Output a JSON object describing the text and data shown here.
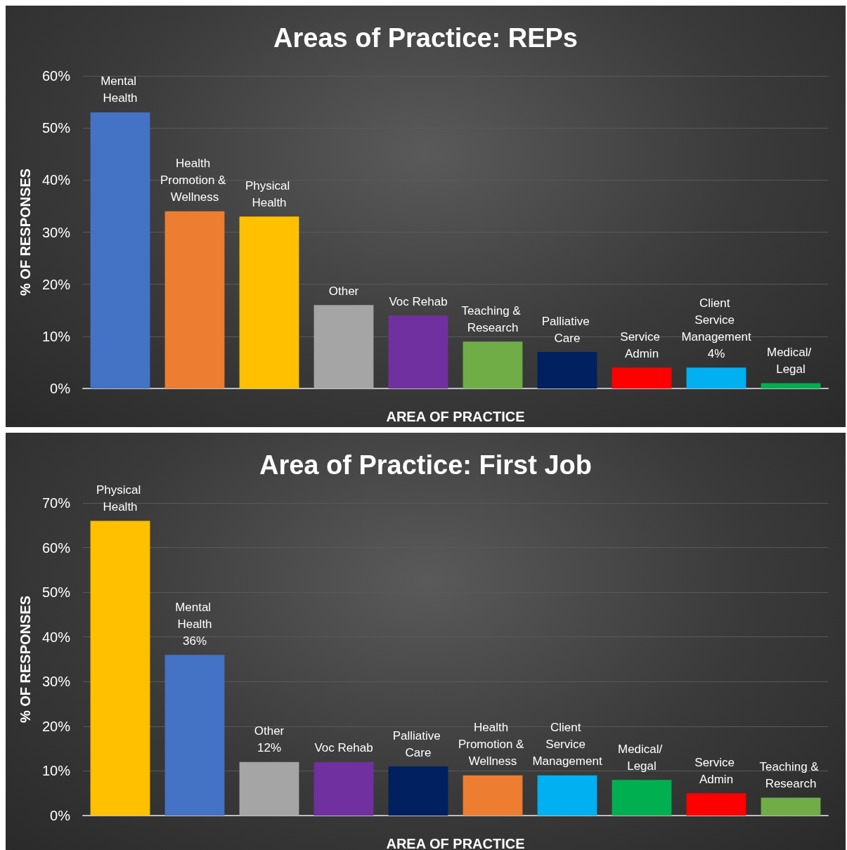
{
  "chart_data": [
    {
      "type": "bar",
      "title": "Areas of Practice: REPs",
      "xlabel": "AREA OF PRACTICE",
      "ylabel": "% OF RESPONSES",
      "categories": [
        "Mental Health",
        "Health Promotion & Wellness",
        "Physical Health",
        "Other",
        "Voc Rehab",
        "Teaching & Research",
        "Palliative Care",
        "Service Admin",
        "Client Service Management",
        "Medical/ Legal"
      ],
      "values": [
        53,
        34,
        33,
        16,
        14,
        9,
        7,
        4,
        4,
        1
      ],
      "value_labels": [
        null,
        null,
        null,
        null,
        null,
        null,
        null,
        null,
        "4%",
        null
      ],
      "colors": [
        "#4472c4",
        "#ed7d31",
        "#ffc000",
        "#a5a5a5",
        "#7030a0",
        "#70ad47",
        "#002060",
        "#ff0000",
        "#00b0f0",
        "#00b050"
      ],
      "ylim": [
        0,
        60
      ],
      "yticks": [
        {
          "value": 0,
          "label": "0%"
        },
        {
          "value": 10,
          "label": "10%"
        },
        {
          "value": 20,
          "label": "20%"
        },
        {
          "value": 30,
          "label": "30%"
        },
        {
          "value": 40,
          "label": "40%"
        },
        {
          "value": 50,
          "label": "50%"
        },
        {
          "value": 60,
          "label": "60%"
        }
      ],
      "grid": "y",
      "tick_labels": "y"
    },
    {
      "type": "bar",
      "title": "Area of Practice: First Job",
      "xlabel": "AREA OF PRACTICE",
      "ylabel": "% OF RESPONSES",
      "categories": [
        "Physical Health",
        "Mental Health",
        "Other",
        "Voc Rehab",
        "Palliative Care",
        "Health Promotion & Wellness",
        "Client Service Management",
        "Medical/ Legal",
        "Service Admin",
        "Teaching & Research"
      ],
      "values": [
        66,
        36,
        12,
        12,
        11,
        9,
        9,
        8,
        5,
        4
      ],
      "value_labels": [
        null,
        "36%",
        "12%",
        null,
        null,
        null,
        null,
        null,
        null,
        null
      ],
      "colors": [
        "#ffc000",
        "#4472c4",
        "#a5a5a5",
        "#7030a0",
        "#002060",
        "#ed7d31",
        "#00b0f0",
        "#00b050",
        "#ff0000",
        "#70ad47"
      ],
      "ylim": [
        0,
        70
      ],
      "yticks": [
        {
          "value": 0,
          "label": "0%"
        },
        {
          "value": 10,
          "label": "10%"
        },
        {
          "value": 20,
          "label": "20%"
        },
        {
          "value": 30,
          "label": "30%"
        },
        {
          "value": 40,
          "label": "40%"
        },
        {
          "value": 50,
          "label": "50%"
        },
        {
          "value": 60,
          "label": "60%"
        },
        {
          "value": 70,
          "label": "70%"
        }
      ],
      "grid": "y",
      "tick_labels": "y"
    }
  ]
}
